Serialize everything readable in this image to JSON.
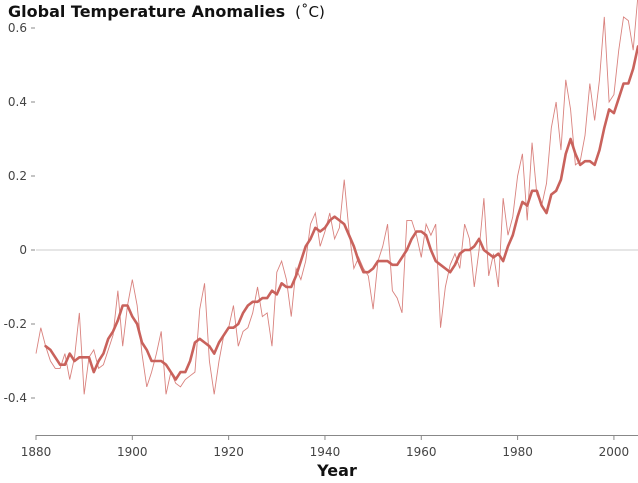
{
  "chart_data": {
    "type": "line",
    "title": "Global Temperature Anomalies",
    "title_unit": "(˚C)",
    "xlabel": "Year",
    "ylabel": "",
    "xlim": [
      1880,
      2005
    ],
    "ylim": [
      -0.5,
      0.6
    ],
    "x_ticks": [
      1880,
      1900,
      1920,
      1940,
      1960,
      1980,
      2000
    ],
    "y_ticks": [
      -0.4,
      -0.2,
      0,
      0.2,
      0.4,
      0.6
    ],
    "y_tick_labels": [
      "-0.4",
      "-0.2",
      "0",
      "0.2",
      "0.4",
      "0.6"
    ],
    "reference_line": 0,
    "colors": {
      "raw": "#d9827e",
      "smooth": "#c9625c"
    },
    "series": [
      {
        "x": [
          1880,
          1881,
          1882,
          1883,
          1884,
          1885,
          1886,
          1887,
          1888,
          1889,
          1890,
          1891,
          1892,
          1893,
          1894,
          1895,
          1896,
          1897,
          1898,
          1899,
          1900,
          1901,
          1902,
          1903,
          1904,
          1905,
          1906,
          1907,
          1908,
          1909,
          1910,
          1911,
          1912,
          1913,
          1914,
          1915,
          1916,
          1917,
          1918,
          1919,
          1920,
          1921,
          1922,
          1923,
          1924,
          1925,
          1926,
          1927,
          1928,
          1929,
          1930,
          1931,
          1932,
          1933,
          1934,
          1935,
          1936,
          1937,
          1938,
          1939,
          1940,
          1941,
          1942,
          1943,
          1944,
          1945,
          1946,
          1947,
          1948,
          1949,
          1950,
          1951,
          1952,
          1953,
          1954,
          1955,
          1956,
          1957,
          1958,
          1959,
          1960,
          1961,
          1962,
          1963,
          1964,
          1965,
          1966,
          1967,
          1968,
          1969,
          1970,
          1971,
          1972,
          1973,
          1974,
          1975,
          1976,
          1977,
          1978,
          1979,
          1980,
          1981,
          1982,
          1983,
          1984,
          1985,
          1986,
          1987,
          1988,
          1989,
          1990,
          1991,
          1992,
          1993,
          1994,
          1995,
          1996,
          1997,
          1998,
          1999,
          2000,
          2001,
          2002,
          2003,
          2004,
          2005
        ],
        "values": [
          -0.28,
          -0.21,
          -0.26,
          -0.3,
          -0.32,
          -0.32,
          -0.28,
          -0.35,
          -0.29,
          -0.17,
          -0.39,
          -0.29,
          -0.27,
          -0.32,
          -0.31,
          -0.27,
          -0.23,
          -0.11,
          -0.26,
          -0.15,
          -0.08,
          -0.15,
          -0.28,
          -0.37,
          -0.33,
          -0.28,
          -0.22,
          -0.39,
          -0.33,
          -0.36,
          -0.37,
          -0.35,
          -0.34,
          -0.33,
          -0.16,
          -0.09,
          -0.3,
          -0.39,
          -0.3,
          -0.23,
          -0.21,
          -0.15,
          -0.26,
          -0.22,
          -0.21,
          -0.17,
          -0.1,
          -0.18,
          -0.17,
          -0.26,
          -0.06,
          -0.03,
          -0.08,
          -0.18,
          -0.05,
          -0.08,
          -0.03,
          0.07,
          0.1,
          0.01,
          0.05,
          0.1,
          0.03,
          0.06,
          0.19,
          0.05,
          -0.05,
          -0.02,
          -0.05,
          -0.07,
          -0.16,
          -0.03,
          0.01,
          0.07,
          -0.11,
          -0.13,
          -0.17,
          0.08,
          0.08,
          0.04,
          -0.02,
          0.07,
          0.04,
          0.07,
          -0.21,
          -0.1,
          -0.04,
          -0.01,
          -0.05,
          0.07,
          0.03,
          -0.1,
          0.0,
          0.14,
          -0.07,
          -0.01,
          -0.1,
          0.14,
          0.04,
          0.09,
          0.2,
          0.26,
          0.08,
          0.29,
          0.15,
          0.12,
          0.18,
          0.33,
          0.4,
          0.27,
          0.46,
          0.38,
          0.23,
          0.24,
          0.31,
          0.45,
          0.35,
          0.46,
          0.63,
          0.4,
          0.42,
          0.54,
          0.63,
          0.62,
          0.54,
          0.69
        ]
      },
      {
        "x": [
          1882,
          1883,
          1884,
          1885,
          1886,
          1887,
          1888,
          1889,
          1890,
          1891,
          1892,
          1893,
          1894,
          1895,
          1896,
          1897,
          1898,
          1899,
          1900,
          1901,
          1902,
          1903,
          1904,
          1905,
          1906,
          1907,
          1908,
          1909,
          1910,
          1911,
          1912,
          1913,
          1914,
          1915,
          1916,
          1917,
          1918,
          1919,
          1920,
          1921,
          1922,
          1923,
          1924,
          1925,
          1926,
          1927,
          1928,
          1929,
          1930,
          1931,
          1932,
          1933,
          1934,
          1935,
          1936,
          1937,
          1938,
          1939,
          1940,
          1941,
          1942,
          1943,
          1944,
          1945,
          1946,
          1947,
          1948,
          1949,
          1950,
          1951,
          1952,
          1953,
          1954,
          1955,
          1956,
          1957,
          1958,
          1959,
          1960,
          1961,
          1962,
          1963,
          1964,
          1965,
          1966,
          1967,
          1968,
          1969,
          1970,
          1971,
          1972,
          1973,
          1974,
          1975,
          1976,
          1977,
          1978,
          1979,
          1980,
          1981,
          1982,
          1983,
          1984,
          1985,
          1986,
          1987,
          1988,
          1989,
          1990,
          1991,
          1992,
          1993,
          1994,
          1995,
          1996,
          1997,
          1998,
          1999,
          2000,
          2001,
          2002,
          2003,
          2004,
          2005
        ],
        "values": [
          -0.26,
          -0.27,
          -0.29,
          -0.31,
          -0.31,
          -0.28,
          -0.3,
          -0.29,
          -0.29,
          -0.29,
          -0.33,
          -0.3,
          -0.28,
          -0.24,
          -0.22,
          -0.19,
          -0.15,
          -0.15,
          -0.18,
          -0.2,
          -0.25,
          -0.27,
          -0.3,
          -0.3,
          -0.3,
          -0.31,
          -0.33,
          -0.35,
          -0.33,
          -0.33,
          -0.3,
          -0.25,
          -0.24,
          -0.25,
          -0.26,
          -0.28,
          -0.25,
          -0.23,
          -0.21,
          -0.21,
          -0.2,
          -0.17,
          -0.15,
          -0.14,
          -0.14,
          -0.13,
          -0.13,
          -0.11,
          -0.12,
          -0.09,
          -0.1,
          -0.1,
          -0.07,
          -0.03,
          0.01,
          0.03,
          0.06,
          0.05,
          0.06,
          0.08,
          0.09,
          0.08,
          0.07,
          0.04,
          0.01,
          -0.03,
          -0.06,
          -0.06,
          -0.05,
          -0.03,
          -0.03,
          -0.03,
          -0.04,
          -0.04,
          -0.02,
          0.0,
          0.03,
          0.05,
          0.05,
          0.04,
          0.0,
          -0.03,
          -0.04,
          -0.05,
          -0.06,
          -0.04,
          -0.01,
          0.0,
          0.0,
          0.01,
          0.03,
          0.0,
          -0.01,
          -0.02,
          -0.01,
          -0.03,
          0.01,
          0.04,
          0.09,
          0.13,
          0.12,
          0.16,
          0.16,
          0.12,
          0.1,
          0.15,
          0.16,
          0.19,
          0.26,
          0.3,
          0.26,
          0.23,
          0.24,
          0.24,
          0.23,
          0.27,
          0.33,
          0.38,
          0.37,
          0.41,
          0.45,
          0.45,
          0.49,
          0.55
        ]
      }
    ]
  }
}
